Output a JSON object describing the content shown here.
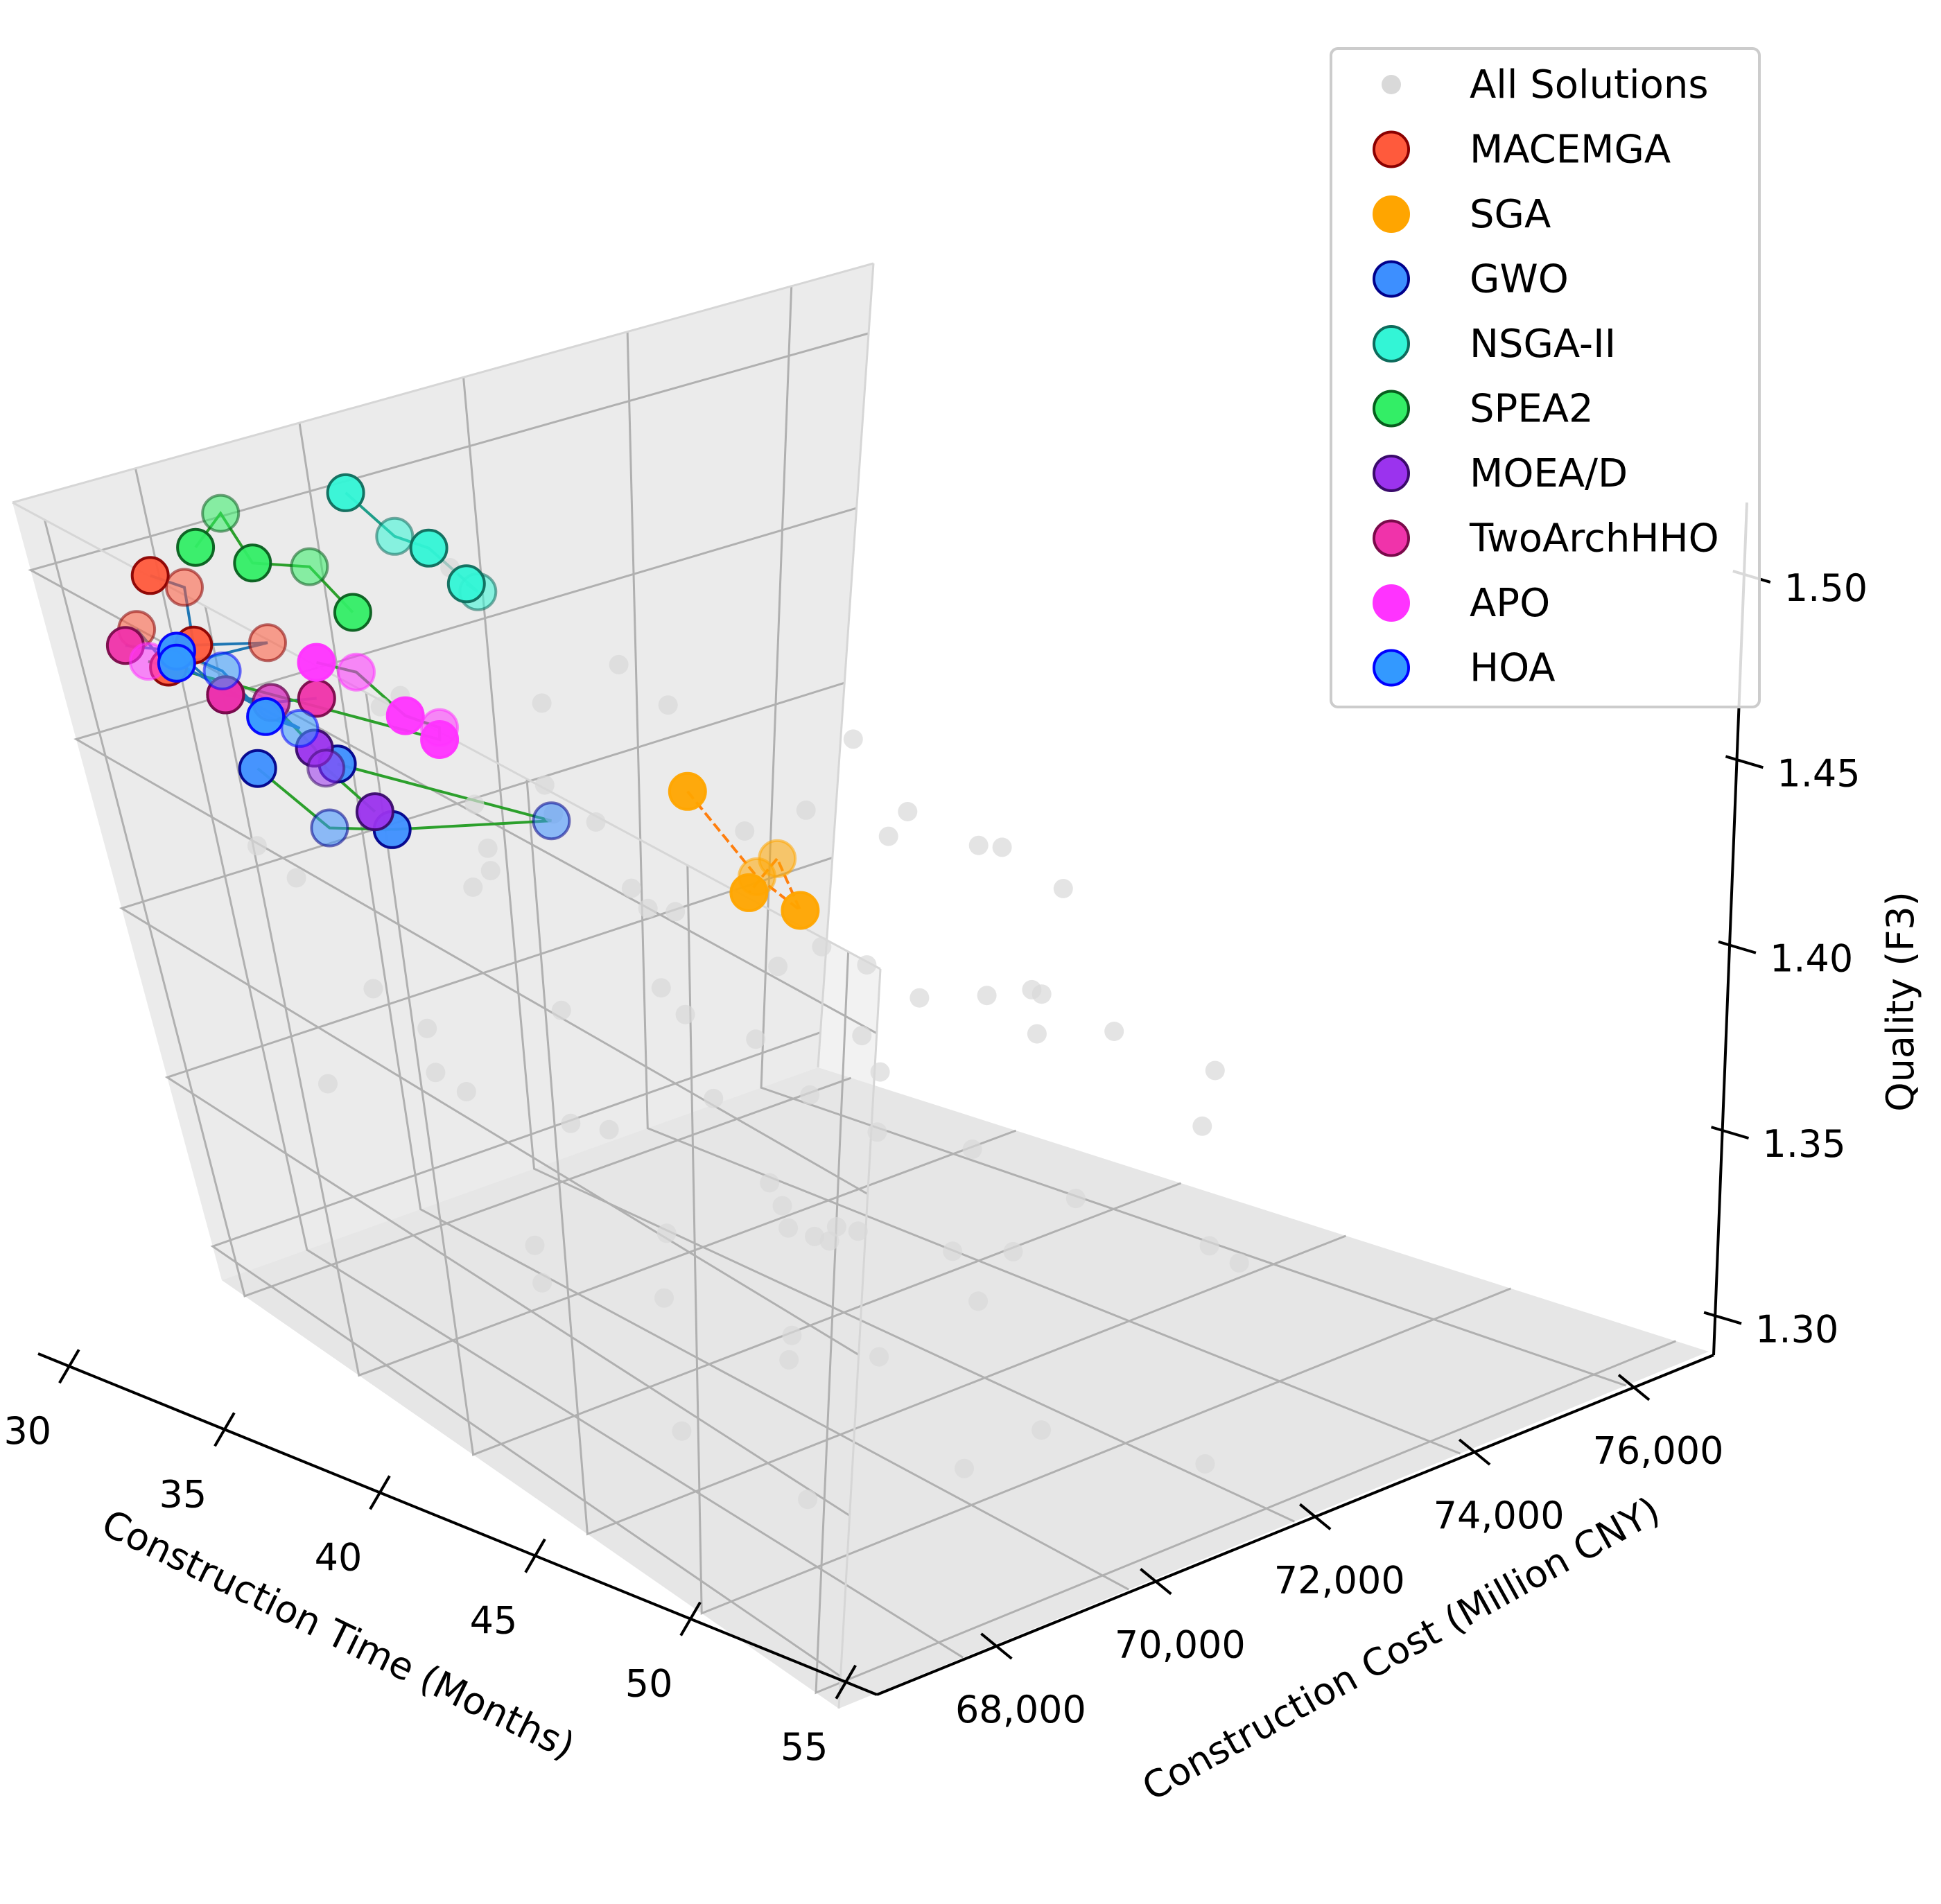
{
  "chart_data": {
    "type": "scatter",
    "projection": "3d",
    "xlabel": "Construction Time (Months)",
    "ylabel": "Construction Cost (Million CNY)",
    "zlabel": "Quality (F3)",
    "x_ticks": [
      "30",
      "35",
      "40",
      "45",
      "50",
      "55"
    ],
    "y_ticks": [
      "68,000",
      "70,000",
      "72,000",
      "74,000",
      "76,000"
    ],
    "z_ticks": [
      "1.30",
      "1.35",
      "1.40",
      "1.45",
      "1.50"
    ],
    "xlim": [
      29,
      56
    ],
    "ylim": [
      66500,
      77000
    ],
    "zlim": [
      1.29,
      1.52
    ],
    "grid": true,
    "legend_position": "top-right",
    "legend": [
      {
        "name": "All Solutions",
        "color": "#d9d9d9",
        "edge": "#d9d9d9",
        "marker": "small"
      },
      {
        "name": "MACEMGA",
        "color": "#ff5a3c",
        "edge": "#8b0000",
        "marker": "large"
      },
      {
        "name": "SGA",
        "color": "#ffa500",
        "edge": "#ffa500",
        "marker": "large"
      },
      {
        "name": "GWO",
        "color": "#3d8fff",
        "edge": "#00008b",
        "marker": "large"
      },
      {
        "name": "NSGA-II",
        "color": "#33f5d6",
        "edge": "#0e6b5c",
        "marker": "large"
      },
      {
        "name": "SPEA2",
        "color": "#33ee66",
        "edge": "#075e1e",
        "marker": "large"
      },
      {
        "name": "MOEA/D",
        "color": "#9b33ee",
        "edge": "#3a0a6b",
        "marker": "large"
      },
      {
        "name": "TwoArchHHO",
        "color": "#f033aa",
        "edge": "#7a0a4a",
        "marker": "large"
      },
      {
        "name": "APO",
        "color": "#ff33ff",
        "edge": "#ff33ff",
        "marker": "large"
      },
      {
        "name": "HOA",
        "color": "#3399ff",
        "edge": "#0000ff",
        "marker": "large"
      }
    ],
    "all_solutions": [
      [
        31,
        74500,
        1.33
      ],
      [
        32,
        71000,
        1.45
      ],
      [
        33,
        69000,
        1.38
      ],
      [
        34,
        73000,
        1.41
      ],
      [
        35,
        75000,
        1.36
      ],
      [
        36,
        70500,
        1.42
      ],
      [
        37,
        68500,
        1.39
      ],
      [
        38,
        72500,
        1.35
      ],
      [
        39,
        76000,
        1.44
      ],
      [
        40,
        69500,
        1.37
      ],
      [
        41,
        74000,
        1.4
      ],
      [
        42,
        71500,
        1.43
      ],
      [
        43,
        67500,
        1.36
      ],
      [
        44,
        73500,
        1.38
      ],
      [
        45,
        70000,
        1.46
      ],
      [
        46,
        75500,
        1.34
      ],
      [
        47,
        68000,
        1.41
      ],
      [
        48,
        72000,
        1.39
      ],
      [
        49,
        74800,
        1.42
      ],
      [
        50,
        69000,
        1.35
      ],
      [
        51,
        71800,
        1.37
      ],
      [
        52,
        76500,
        1.4
      ],
      [
        53,
        67800,
        1.33
      ],
      [
        54,
        73200,
        1.44
      ],
      [
        55,
        70800,
        1.38
      ],
      [
        30.5,
        72800,
        1.47
      ],
      [
        33.5,
        75500,
        1.39
      ],
      [
        36.5,
        67200,
        1.44
      ],
      [
        39.5,
        73800,
        1.31
      ],
      [
        42.5,
        69800,
        1.48
      ],
      [
        45.5,
        74200,
        1.36
      ],
      [
        48.5,
        70300,
        1.43
      ],
      [
        51.5,
        75800,
        1.35
      ],
      [
        54.5,
        68600,
        1.41
      ],
      [
        32.5,
        70200,
        1.34
      ],
      [
        35.5,
        73600,
        1.46
      ],
      [
        38.5,
        68800,
        1.32
      ],
      [
        41.5,
        75200,
        1.38
      ],
      [
        44.5,
        71200,
        1.35
      ],
      [
        47.5,
        67600,
        1.45
      ],
      [
        50.5,
        72600,
        1.31
      ],
      [
        53.5,
        74600,
        1.43
      ],
      [
        31.5,
        68200,
        1.42
      ],
      [
        34.5,
        76200,
        1.33
      ],
      [
        37.5,
        71600,
        1.47
      ],
      [
        40.5,
        67400,
        1.4
      ],
      [
        43.5,
        72400,
        1.3
      ],
      [
        46.5,
        69600,
        1.44
      ],
      [
        49.5,
        76800,
        1.37
      ],
      [
        52.5,
        70600,
        1.32
      ],
      [
        55.5,
        73000,
        1.46
      ],
      [
        30.2,
        75800,
        1.41
      ],
      [
        33.2,
        67800,
        1.36
      ],
      [
        36.2,
        74600,
        1.33
      ],
      [
        39.2,
        70800,
        1.45
      ],
      [
        42.2,
        76600,
        1.42
      ],
      [
        45.2,
        68400,
        1.31
      ],
      [
        48.2,
        73400,
        1.47
      ],
      [
        51.2,
        69200,
        1.4
      ],
      [
        54.2,
        75400,
        1.36
      ],
      [
        31.8,
        71400,
        1.39
      ],
      [
        34.8,
        69400,
        1.43
      ],
      [
        37.8,
        75600,
        1.37
      ],
      [
        40.8,
        72200,
        1.34
      ],
      [
        43.8,
        68200,
        1.49
      ],
      [
        46.8,
        76400,
        1.43
      ],
      [
        49.8,
        70400,
        1.38
      ],
      [
        52.8,
        74400,
        1.3
      ],
      [
        55.2,
        67600,
        1.39
      ],
      [
        35.2,
        72000,
        1.3
      ],
      [
        38.2,
        76800,
        1.41
      ],
      [
        41.2,
        69000,
        1.46
      ],
      [
        44.2,
        74800,
        1.32
      ],
      [
        47.2,
        71000,
        1.36
      ],
      [
        50.2,
        67200,
        1.38
      ],
      [
        53.2,
        72800,
        1.45
      ],
      [
        32.2,
        74000,
        1.37
      ],
      [
        36.8,
        69200,
        1.48
      ],
      [
        42.8,
        73800,
        1.45
      ],
      [
        48.8,
        75000,
        1.46
      ]
    ],
    "series": [
      {
        "name": "MACEMGA",
        "points": [
          [
            31,
            67800,
            1.5
          ],
          [
            32,
            68000,
            1.5
          ],
          [
            33,
            67600,
            1.49
          ],
          [
            34,
            68500,
            1.49
          ],
          [
            32,
            67400,
            1.48
          ],
          [
            31.5,
            67200,
            1.49
          ]
        ]
      },
      {
        "name": "SGA",
        "points": [
          [
            31,
            75500,
            1.39
          ],
          [
            32.5,
            75800,
            1.37
          ],
          [
            33,
            76200,
            1.36
          ],
          [
            30.5,
            76800,
            1.36
          ],
          [
            31.5,
            75900,
            1.36
          ]
        ]
      },
      {
        "name": "GWO",
        "points": [
          [
            36,
            67200,
            1.47
          ],
          [
            38,
            67500,
            1.46
          ],
          [
            39,
            68200,
            1.46
          ],
          [
            41,
            70200,
            1.46
          ],
          [
            37,
            68200,
            1.47
          ]
        ]
      },
      {
        "name": "NSGA-II",
        "points": [
          [
            32,
            71000,
            1.51
          ],
          [
            33,
            71300,
            1.5
          ],
          [
            34,
            71500,
            1.5
          ],
          [
            35,
            71800,
            1.49
          ],
          [
            34.5,
            71800,
            1.49
          ]
        ]
      },
      {
        "name": "SPEA2",
        "points": [
          [
            30.5,
            68800,
            1.5
          ],
          [
            31,
            69200,
            1.51
          ],
          [
            32,
            69200,
            1.5
          ],
          [
            33,
            69800,
            1.5
          ],
          [
            34,
            70000,
            1.49
          ]
        ]
      },
      {
        "name": "MOEA/D",
        "points": [
          [
            34,
            67600,
            1.48
          ],
          [
            35,
            68000,
            1.48
          ],
          [
            36,
            68200,
            1.47
          ],
          [
            37,
            68000,
            1.47
          ],
          [
            38,
            68300,
            1.46
          ]
        ]
      },
      {
        "name": "TwoArchHHO",
        "points": [
          [
            32,
            66800,
            1.49
          ],
          [
            33,
            67300,
            1.49
          ],
          [
            34,
            67600,
            1.48
          ],
          [
            35,
            68000,
            1.48
          ],
          [
            35.5,
            68600,
            1.48
          ]
        ]
      },
      {
        "name": "APO",
        "points": [
          [
            34,
            69200,
            1.48
          ],
          [
            35,
            69500,
            1.48
          ],
          [
            36,
            69800,
            1.47
          ],
          [
            37,
            70000,
            1.47
          ],
          [
            37.5,
            69800,
            1.47
          ],
          [
            33,
            66800,
            1.49
          ]
        ]
      },
      {
        "name": "HOA",
        "points": [
          [
            33,
            67300,
            1.49
          ],
          [
            34.5,
            67500,
            1.49
          ],
          [
            35.5,
            67700,
            1.48
          ],
          [
            36.5,
            67900,
            1.48
          ],
          [
            33.5,
            67100,
            1.49
          ]
        ]
      }
    ]
  }
}
